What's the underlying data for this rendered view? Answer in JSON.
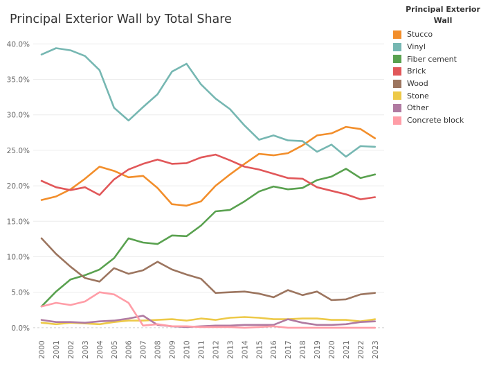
{
  "chart_data": {
    "type": "line",
    "title": "Principal Exterior Wall by Total Share",
    "xlabel": "",
    "ylabel": "",
    "x": [
      "2000",
      "2001",
      "2002",
      "2003",
      "2004",
      "2005",
      "2006",
      "2007",
      "2008",
      "2009",
      "2010",
      "2011",
      "2012",
      "2013",
      "2014",
      "2015",
      "2016",
      "2017",
      "2018",
      "2019",
      "2020",
      "2021",
      "2022",
      "2023"
    ],
    "yticks": [
      "0.0%",
      "5.0%",
      "10.0%",
      "15.0%",
      "20.0%",
      "25.0%",
      "30.0%",
      "35.0%",
      "40.0%"
    ],
    "ylim": [
      -0.5,
      41.5
    ],
    "grid": "horizontal",
    "legend_placement": "right",
    "legend_title": "Principal Exterior Wall",
    "series": [
      {
        "name": "Stucco",
        "color": "#F28E2B",
        "values": [
          18.0,
          18.5,
          19.5,
          21.0,
          22.7,
          22.1,
          21.2,
          21.4,
          19.7,
          17.4,
          17.2,
          17.8,
          20.0,
          21.6,
          23.1,
          24.5,
          24.3,
          24.6,
          25.7,
          27.1,
          27.4,
          28.3,
          28.0,
          26.7
        ]
      },
      {
        "name": "Vinyl",
        "color": "#76B7B2",
        "values": [
          38.5,
          39.4,
          39.1,
          38.3,
          36.3,
          31.0,
          29.2,
          31.1,
          32.9,
          36.1,
          37.2,
          34.3,
          32.3,
          30.8,
          28.5,
          26.5,
          27.1,
          26.4,
          26.3,
          24.8,
          25.8,
          24.1,
          25.6,
          25.5
        ]
      },
      {
        "name": "Fiber cement",
        "color": "#59A14F",
        "values": [
          3.0,
          5.1,
          6.8,
          7.4,
          8.2,
          9.8,
          12.6,
          12.0,
          11.8,
          13.0,
          12.9,
          14.4,
          16.4,
          16.6,
          17.8,
          19.2,
          19.9,
          19.5,
          19.7,
          20.8,
          21.3,
          22.4,
          21.1,
          21.6
        ]
      },
      {
        "name": "Brick",
        "color": "#E15759",
        "values": [
          20.7,
          19.8,
          19.4,
          19.8,
          18.7,
          20.9,
          22.3,
          23.1,
          23.7,
          23.1,
          23.2,
          24.0,
          24.4,
          23.6,
          22.7,
          22.3,
          21.7,
          21.1,
          21.0,
          19.8,
          19.3,
          18.8,
          18.1,
          18.4
        ]
      },
      {
        "name": "Wood",
        "color": "#9C755F",
        "values": [
          12.6,
          10.4,
          8.6,
          7.0,
          6.5,
          8.4,
          7.6,
          8.1,
          9.3,
          8.2,
          7.5,
          6.9,
          4.9,
          5.0,
          5.1,
          4.8,
          4.3,
          5.3,
          4.6,
          5.1,
          3.9,
          4.0,
          4.7,
          4.9
        ]
      },
      {
        "name": "Stone",
        "color": "#EDC948",
        "values": [
          0.7,
          0.5,
          0.7,
          0.6,
          0.5,
          0.8,
          1.0,
          1.0,
          1.1,
          1.2,
          1.0,
          1.3,
          1.1,
          1.4,
          1.5,
          1.4,
          1.2,
          1.2,
          1.3,
          1.3,
          1.1,
          1.1,
          0.9,
          1.2
        ]
      },
      {
        "name": "Other",
        "color": "#B07AA1",
        "values": [
          1.1,
          0.8,
          0.8,
          0.7,
          0.9,
          1.0,
          1.3,
          1.7,
          0.4,
          0.2,
          0.1,
          0.2,
          0.3,
          0.3,
          0.4,
          0.4,
          0.4,
          1.2,
          0.7,
          0.4,
          0.4,
          0.5,
          0.8,
          0.9
        ]
      },
      {
        "name": "Concrete block",
        "color": "#FF9DA7",
        "values": [
          3.0,
          3.5,
          3.2,
          3.7,
          5.0,
          4.7,
          3.5,
          0.3,
          0.5,
          0.2,
          0.2,
          0.1,
          0.1,
          0.1,
          0.0,
          0.1,
          0.2,
          0.0,
          0.0,
          0.0,
          0.0,
          0.0,
          0.0,
          0.0
        ]
      }
    ]
  }
}
